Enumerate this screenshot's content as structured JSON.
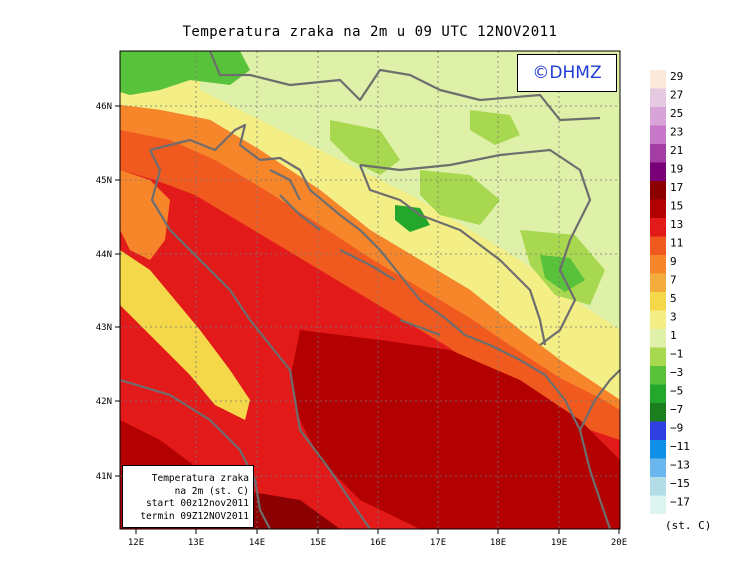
{
  "title": "Temperatura zraka na 2m u 09 UTC 12NOV2011",
  "logo": "©DHMZ",
  "info_box": {
    "line1": "Temperatura zraka",
    "line2": "na 2m (st. C)",
    "line3": "start 00z12nov2011",
    "line4": "termin 09Z12NOV2011"
  },
  "axes": {
    "lon_ticks": [
      "12E",
      "13E",
      "14E",
      "15E",
      "16E",
      "17E",
      "18E",
      "19E",
      "20E"
    ],
    "lat_ticks": [
      "41N",
      "42N",
      "43N",
      "44N",
      "45N",
      "46N"
    ]
  },
  "legend": {
    "unit": "(st. C)",
    "labels": [
      "29",
      "27",
      "25",
      "23",
      "21",
      "19",
      "17",
      "15",
      "13",
      "11",
      "9",
      "7",
      "5",
      "3",
      "1",
      "−1",
      "−3",
      "−5",
      "−7",
      "−9",
      "−11",
      "−13",
      "−15",
      "−17"
    ],
    "colors": [
      "#fbe9dc",
      "#e4c9e0",
      "#d8a3d6",
      "#c777c8",
      "#a33ca3",
      "#7a007a",
      "#8b0000",
      "#b30000",
      "#e21a1a",
      "#f05a1e",
      "#f7862b",
      "#f4ac3c",
      "#f5d84a",
      "#f3ee86",
      "#dff0a8",
      "#a8d84f",
      "#57c23a",
      "#24a82c",
      "#1b7f1f",
      "#2f3fe0",
      "#0f8fe8",
      "#69b7ee",
      "#b3dde6",
      "#def4f0"
    ]
  }
}
